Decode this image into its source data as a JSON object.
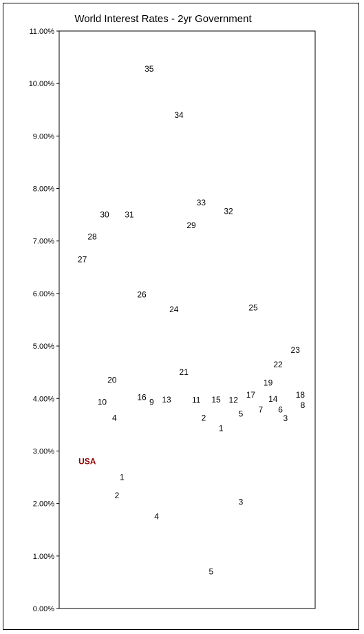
{
  "chart_data": {
    "type": "scatter",
    "title": "World Interest Rates - 2yr Government",
    "xlabel": "",
    "ylabel": "",
    "ylim": [
      0,
      11
    ],
    "y_ticks": [
      "0.00%",
      "1.00%",
      "2.00%",
      "3.00%",
      "4.00%",
      "5.00%",
      "6.00%",
      "7.00%",
      "8.00%",
      "9.00%",
      "10.00%",
      "11.00%"
    ],
    "grid": false,
    "legend": "none",
    "highlight_color": "#8b0000",
    "points": [
      {
        "label": "USA",
        "x": 0.8,
        "y": 2.8,
        "highlight": true
      },
      {
        "label": "1",
        "x": 2.2,
        "y": 2.5
      },
      {
        "label": "2",
        "x": 2.0,
        "y": 2.15
      },
      {
        "label": "4",
        "x": 3.6,
        "y": 1.75
      },
      {
        "label": "5",
        "x": 5.8,
        "y": 0.7
      },
      {
        "label": "3",
        "x": 7.0,
        "y": 2.03
      },
      {
        "label": "10",
        "x": 1.4,
        "y": 3.93
      },
      {
        "label": "20",
        "x": 1.8,
        "y": 4.35
      },
      {
        "label": "4",
        "x": 1.9,
        "y": 3.63
      },
      {
        "label": "16",
        "x": 3.0,
        "y": 4.02
      },
      {
        "label": "9",
        "x": 3.4,
        "y": 3.93
      },
      {
        "label": "13",
        "x": 4.0,
        "y": 3.98
      },
      {
        "label": "21",
        "x": 4.7,
        "y": 4.5
      },
      {
        "label": "11",
        "x": 5.2,
        "y": 3.97
      },
      {
        "label": "2",
        "x": 5.5,
        "y": 3.63
      },
      {
        "label": "15",
        "x": 6.0,
        "y": 3.98
      },
      {
        "label": "1",
        "x": 6.2,
        "y": 3.43
      },
      {
        "label": "12",
        "x": 6.7,
        "y": 3.97
      },
      {
        "label": "5",
        "x": 7.0,
        "y": 3.71
      },
      {
        "label": "17",
        "x": 7.4,
        "y": 4.07
      },
      {
        "label": "7",
        "x": 7.8,
        "y": 3.79
      },
      {
        "label": "19",
        "x": 8.1,
        "y": 4.3
      },
      {
        "label": "14",
        "x": 8.3,
        "y": 3.99
      },
      {
        "label": "22",
        "x": 8.5,
        "y": 4.65
      },
      {
        "label": "6",
        "x": 8.6,
        "y": 3.79
      },
      {
        "label": "3",
        "x": 8.8,
        "y": 3.62
      },
      {
        "label": "23",
        "x": 9.2,
        "y": 4.92
      },
      {
        "label": "18",
        "x": 9.4,
        "y": 4.07
      },
      {
        "label": "8",
        "x": 9.5,
        "y": 3.87
      },
      {
        "label": "27",
        "x": 0.6,
        "y": 6.65
      },
      {
        "label": "28",
        "x": 1.0,
        "y": 7.08
      },
      {
        "label": "30",
        "x": 1.5,
        "y": 7.5
      },
      {
        "label": "31",
        "x": 2.5,
        "y": 7.5
      },
      {
        "label": "26",
        "x": 3.0,
        "y": 5.98
      },
      {
        "label": "24",
        "x": 4.3,
        "y": 5.7
      },
      {
        "label": "29",
        "x": 5.0,
        "y": 7.3
      },
      {
        "label": "33",
        "x": 5.4,
        "y": 7.73
      },
      {
        "label": "32",
        "x": 6.5,
        "y": 7.57
      },
      {
        "label": "25",
        "x": 7.5,
        "y": 5.73
      },
      {
        "label": "35",
        "x": 3.3,
        "y": 10.28
      },
      {
        "label": "34",
        "x": 4.5,
        "y": 9.4
      }
    ]
  }
}
